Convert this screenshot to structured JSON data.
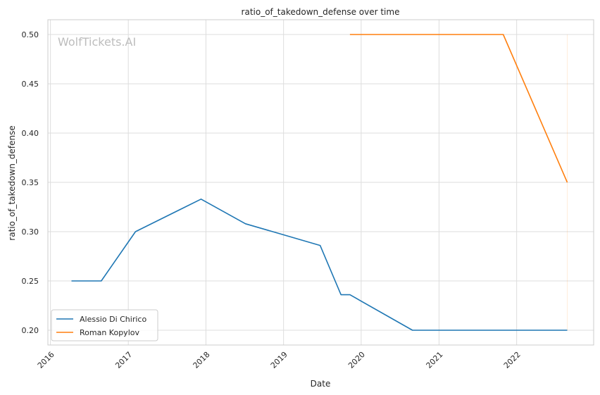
{
  "chart_data": {
    "type": "line",
    "title": "ratio_of_takedown_defense over time",
    "xlabel": "Date",
    "ylabel": "ratio_of_takedown_defense",
    "watermark": "WolfTickets.AI",
    "x_ticks": [
      "2016",
      "2017",
      "2018",
      "2019",
      "2020",
      "2021",
      "2022"
    ],
    "y_ticks": [
      "0.20",
      "0.25",
      "0.30",
      "0.35",
      "0.40",
      "0.45",
      "0.50"
    ],
    "xlim": [
      "2015-12-20",
      "2022-12-29"
    ],
    "ylim": [
      0.185,
      0.515
    ],
    "grid": true,
    "legend_position": "lower-left",
    "series": [
      {
        "name": "Alessio Di Chirico",
        "color": "#1f77b4",
        "points": [
          {
            "x": "2016-04-09",
            "y": 0.25
          },
          {
            "x": "2016-08-27",
            "y": 0.25
          },
          {
            "x": "2017-02-04",
            "y": 0.3
          },
          {
            "x": "2017-12-09",
            "y": 0.333
          },
          {
            "x": "2018-07-06",
            "y": 0.308
          },
          {
            "x": "2019-06-22",
            "y": 0.286
          },
          {
            "x": "2019-09-28",
            "y": 0.236
          },
          {
            "x": "2019-11-09",
            "y": 0.236
          },
          {
            "x": "2020-08-29",
            "y": 0.2
          },
          {
            "x": "2022-08-27",
            "y": 0.2
          }
        ]
      },
      {
        "name": "Roman Kopylov",
        "color": "#ff7f0e",
        "points": [
          {
            "x": "2019-11-09",
            "y": 0.5
          },
          {
            "x": "2021-10-30",
            "y": 0.5
          },
          {
            "x": "2022-08-27",
            "y": 0.35
          }
        ]
      }
    ]
  }
}
